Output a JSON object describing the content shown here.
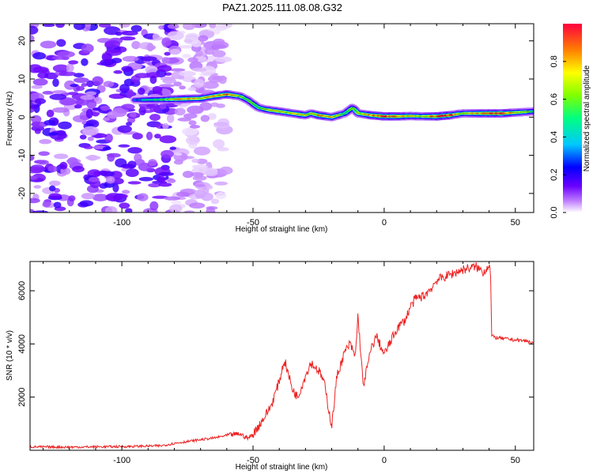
{
  "title": "PAZ1.2025.111.08.08.G32",
  "chart_data": [
    {
      "type": "heatmap",
      "xlabel": "Height of straight line (km)",
      "ylabel": "Frequency (Hz)",
      "xlim": [
        -135,
        57
      ],
      "ylim": [
        -25,
        24.5
      ],
      "xticks": [
        -100,
        -50,
        0,
        50
      ],
      "yticks": [
        -20,
        -10,
        0,
        10,
        20
      ],
      "colorbar": {
        "label": "Normalized spectral amplitude",
        "ticks": [
          0.0,
          0.2,
          0.4,
          0.6,
          0.8
        ],
        "tick_labels": [
          "0.0",
          "0.2",
          "0.4",
          "0.6",
          "0.8"
        ],
        "range": [
          0,
          1
        ],
        "colormap": [
          "#ffffff",
          "#c080ff",
          "#6a00ff",
          "#0000ff",
          "#00c8ff",
          "#00ff80",
          "#80ff00",
          "#ffff00",
          "#ff8000",
          "#ff0040"
        ]
      },
      "ridge": {
        "x": [
          -95,
          -85,
          -80,
          -75,
          -70,
          -65,
          -60,
          -55,
          -52,
          -50,
          -48,
          -45,
          -40,
          -35,
          -30,
          -28,
          -25,
          -20,
          -15,
          -12,
          -10,
          -5,
          0,
          5,
          10,
          15,
          20,
          25,
          30,
          35,
          40,
          45,
          50,
          57
        ],
        "y": [
          4.5,
          4.6,
          4.7,
          4.8,
          4.9,
          5.5,
          6.0,
          5.5,
          4.5,
          3.5,
          2.5,
          2.0,
          1.5,
          1.0,
          0.5,
          1.0,
          0.5,
          0.0,
          1.0,
          2.5,
          1.0,
          0.5,
          0.2,
          0.2,
          0.3,
          0.2,
          0.2,
          0.5,
          1.0,
          1.0,
          1.0,
          1.0,
          1.2,
          1.5
        ],
        "amplitude": [
          0.3,
          0.5,
          0.7,
          0.8,
          0.75,
          0.7,
          0.85,
          0.6,
          0.55,
          0.5,
          0.55,
          0.6,
          0.7,
          0.65,
          0.7,
          0.6,
          0.8,
          0.75,
          0.5,
          0.55,
          0.6,
          0.8,
          0.9,
          0.9,
          0.7,
          0.65,
          0.9,
          0.95,
          0.6,
          0.75,
          0.9,
          0.95,
          0.7,
          0.5
        ]
      },
      "noise_region": {
        "x_from": -135,
        "x_to": -80,
        "level": 0.12
      }
    },
    {
      "type": "line",
      "xlabel": "Height of straight line (km)",
      "ylabel": "SNR (10 * v/v)",
      "xlim": [
        -135,
        57
      ],
      "ylim": [
        0,
        7100
      ],
      "xticks": [
        -100,
        -50,
        0,
        50
      ],
      "yticks": [
        2000,
        4000,
        6000
      ],
      "color": "#ee2222",
      "series": [
        {
          "x": [
            -135,
            -120,
            -100,
            -85,
            -80,
            -75,
            -70,
            -65,
            -60,
            -55,
            -52,
            -50,
            -48,
            -45,
            -43,
            -40,
            -38,
            -35,
            -33,
            -30,
            -28,
            -25,
            -23,
            -20,
            -18,
            -15,
            -13,
            -11,
            -10,
            -8,
            -5,
            -3,
            0,
            3,
            5,
            8,
            10,
            12,
            15,
            18,
            20,
            25,
            30,
            35,
            38,
            40,
            40.5,
            41,
            42,
            45,
            50,
            55,
            57
          ],
          "y": [
            130,
            120,
            140,
            170,
            260,
            330,
            400,
            460,
            560,
            620,
            450,
            600,
            900,
            1350,
            1700,
            2600,
            3400,
            2300,
            2000,
            2800,
            3300,
            3000,
            2600,
            900,
            2800,
            3700,
            4000,
            3500,
            5100,
            2400,
            3800,
            4300,
            3600,
            4200,
            4600,
            4900,
            5400,
            5700,
            5800,
            6100,
            6400,
            6600,
            6800,
            6900,
            6700,
            7000,
            6800,
            4300,
            4250,
            4200,
            4150,
            4100,
            4000
          ]
        }
      ]
    }
  ]
}
